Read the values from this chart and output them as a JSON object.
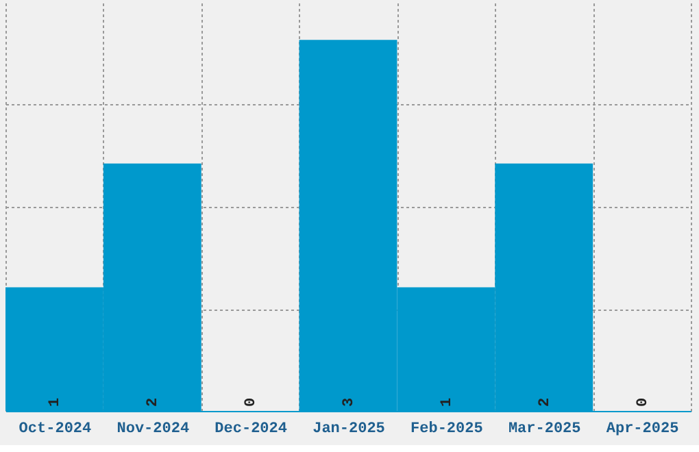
{
  "chart_data": {
    "type": "bar",
    "categories": [
      "Oct-2024",
      "Nov-2024",
      "Dec-2024",
      "Jan-2025",
      "Feb-2025",
      "Mar-2025",
      "Apr-2025"
    ],
    "values": [
      1,
      2,
      0,
      3,
      1,
      2,
      0
    ],
    "color": "#0099cc",
    "ylim": [
      0,
      3.3
    ],
    "yticks": [
      {
        "value": 0.825,
        "label": null
      },
      {
        "value": 1.65,
        "label": null
      },
      {
        "value": 2.475,
        "label": null
      }
    ],
    "grid": true,
    "data_labels": true,
    "tick_labels": "x"
  }
}
